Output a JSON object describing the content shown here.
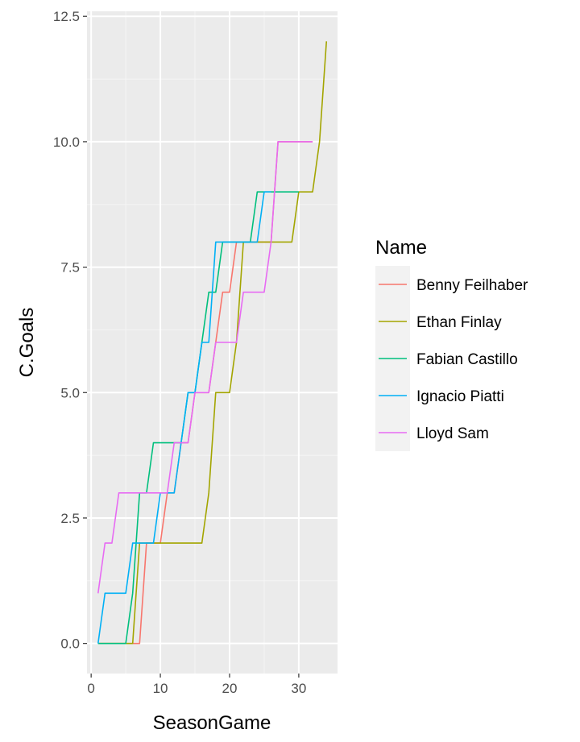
{
  "chart_data": {
    "type": "line",
    "xlabel": "SeasonGame",
    "ylabel": "C.Goals",
    "xlim": [
      -0.6,
      35.6
    ],
    "ylim": [
      -0.6,
      12.6
    ],
    "xticks": [
      0,
      10,
      20,
      30
    ],
    "xtick_labels": [
      "0",
      "10",
      "20",
      "30"
    ],
    "yticks": [
      0,
      2.5,
      5,
      7.5,
      10,
      12.5
    ],
    "ytick_labels": [
      "0.0",
      "2.5",
      "5.0",
      "7.5",
      "10.0",
      "12.5"
    ],
    "grid": true,
    "legend": {
      "title": "Name",
      "position": "right"
    },
    "series": [
      {
        "name": "Benny Feilhaber",
        "color": "#F8766D",
        "x": [
          1,
          2,
          3,
          4,
          5,
          6,
          7,
          8,
          9,
          10,
          11,
          12,
          13,
          14,
          15,
          16,
          17,
          18,
          19,
          20,
          21,
          22,
          23,
          24,
          25,
          26,
          27,
          28,
          29,
          30,
          31,
          32
        ],
        "y": [
          0,
          0,
          0,
          0,
          0,
          0,
          0,
          2,
          2,
          2,
          3,
          3,
          4,
          4,
          5,
          5,
          5,
          6,
          7,
          7,
          8,
          8,
          8,
          8,
          8,
          8,
          10,
          10,
          10,
          10,
          10,
          10
        ]
      },
      {
        "name": "Ethan Finlay",
        "color": "#A3A500",
        "x": [
          1,
          2,
          3,
          4,
          5,
          6,
          7,
          8,
          9,
          10,
          11,
          12,
          13,
          14,
          15,
          16,
          17,
          18,
          19,
          20,
          21,
          22,
          23,
          24,
          25,
          26,
          27,
          28,
          29,
          30,
          31,
          32,
          33,
          34
        ],
        "y": [
          0,
          0,
          0,
          0,
          0,
          0,
          2,
          2,
          2,
          2,
          2,
          2,
          2,
          2,
          2,
          2,
          3,
          5,
          5,
          5,
          6,
          8,
          8,
          8,
          8,
          8,
          8,
          8,
          8,
          9,
          9,
          9,
          10,
          12
        ]
      },
      {
        "name": "Fabian Castillo",
        "color": "#00BF7D",
        "x": [
          1,
          2,
          3,
          4,
          5,
          6,
          7,
          8,
          9,
          10,
          11,
          12,
          13,
          14,
          15,
          16,
          17,
          18,
          19,
          20,
          21,
          22,
          23,
          24,
          25,
          26,
          27,
          28,
          29,
          30
        ],
        "y": [
          0,
          0,
          0,
          0,
          0,
          1,
          3,
          3,
          4,
          4,
          4,
          4,
          4,
          5,
          5,
          6,
          7,
          7,
          8,
          8,
          8,
          8,
          8,
          9,
          9,
          9,
          9,
          9,
          9,
          9
        ]
      },
      {
        "name": "Ignacio Piatti",
        "color": "#00B0F6",
        "x": [
          1,
          2,
          3,
          4,
          5,
          6,
          7,
          8,
          9,
          10,
          11,
          12,
          13,
          14,
          15,
          16,
          17,
          18,
          19,
          20,
          21,
          22,
          23,
          24,
          25,
          26
        ],
        "y": [
          0,
          1,
          1,
          1,
          1,
          2,
          2,
          2,
          2,
          3,
          3,
          3,
          4,
          5,
          5,
          6,
          6,
          8,
          8,
          8,
          8,
          8,
          8,
          8,
          9,
          9
        ]
      },
      {
        "name": "Lloyd Sam",
        "color": "#E76BF3",
        "x": [
          1,
          2,
          3,
          4,
          5,
          6,
          7,
          8,
          9,
          10,
          11,
          12,
          13,
          14,
          15,
          16,
          17,
          18,
          19,
          20,
          21,
          22,
          23,
          24,
          25,
          26,
          27,
          28,
          29,
          30,
          31,
          32
        ],
        "y": [
          1,
          2,
          2,
          3,
          3,
          3,
          3,
          3,
          3,
          3,
          3,
          4,
          4,
          4,
          5,
          5,
          5,
          6,
          6,
          6,
          6,
          7,
          7,
          7,
          7,
          8,
          10,
          10,
          10,
          10,
          10,
          10
        ]
      }
    ]
  }
}
